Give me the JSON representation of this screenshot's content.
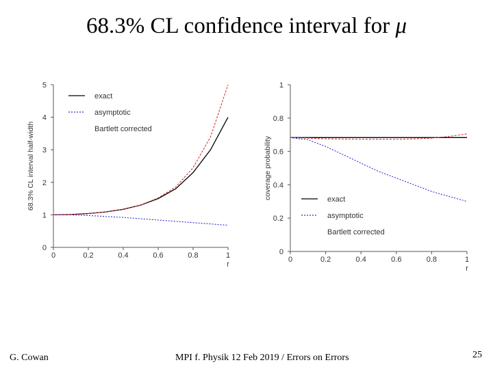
{
  "slide": {
    "title_main": "68.3% CL confidence interval for ",
    "title_symbol": "μ",
    "footer_left": "G. Cowan",
    "footer_center": "MPI f. Physik 12 Feb 2019 / Errors on Errors",
    "page_number": "25"
  },
  "chart_data": [
    {
      "type": "line",
      "xlabel": "r",
      "ylabel": "68.3% CL interval half-width",
      "xlim": [
        0,
        1
      ],
      "ylim": [
        0,
        5
      ],
      "xticks": [
        "0",
        "0.2",
        "0.4",
        "0.6",
        "0.8",
        "1"
      ],
      "yticks": [
        "0",
        "1",
        "2",
        "3",
        "4",
        "5"
      ],
      "legend": [
        "exact",
        "asymptotic",
        "Bartlett corrected"
      ],
      "legend_position": "top-left",
      "grid": false,
      "series": [
        {
          "name": "exact",
          "color": "#000000",
          "x": [
            0,
            0.1,
            0.2,
            0.3,
            0.4,
            0.5,
            0.6,
            0.7,
            0.8,
            0.9,
            1.0
          ],
          "y": [
            1.0,
            1.01,
            1.04,
            1.09,
            1.17,
            1.3,
            1.5,
            1.8,
            2.3,
            3.0,
            4.0
          ]
        },
        {
          "name": "asymptotic",
          "color": "#2a2ad8",
          "x": [
            0,
            0.1,
            0.2,
            0.3,
            0.4,
            0.5,
            0.6,
            0.7,
            0.8,
            0.9,
            1.0
          ],
          "y": [
            1.0,
            1.0,
            0.98,
            0.95,
            0.92,
            0.88,
            0.84,
            0.8,
            0.76,
            0.72,
            0.68
          ]
        },
        {
          "name": "Bartlett corrected",
          "color": "#d83030",
          "x": [
            0,
            0.1,
            0.2,
            0.3,
            0.4,
            0.5,
            0.6,
            0.7,
            0.8,
            0.9,
            1.0
          ],
          "y": [
            1.0,
            1.01,
            1.04,
            1.09,
            1.17,
            1.3,
            1.52,
            1.85,
            2.45,
            3.4,
            5.0
          ]
        }
      ]
    },
    {
      "type": "line",
      "xlabel": "r",
      "ylabel": "coverage probability",
      "xlim": [
        0,
        1
      ],
      "ylim": [
        0,
        1
      ],
      "xticks": [
        "0",
        "0.2",
        "0.4",
        "0.6",
        "0.8",
        "1"
      ],
      "yticks": [
        "0",
        "0.2",
        "0.4",
        "0.6",
        "0.8",
        "1"
      ],
      "legend": [
        "exact",
        "asymptotic",
        "Bartlett corrected"
      ],
      "legend_position": "bottom-left",
      "grid": false,
      "series": [
        {
          "name": "exact",
          "color": "#000000",
          "x": [
            0,
            0.2,
            0.4,
            0.6,
            0.8,
            1.0
          ],
          "y": [
            0.683,
            0.683,
            0.683,
            0.683,
            0.683,
            0.683
          ]
        },
        {
          "name": "asymptotic",
          "color": "#2a2ad8",
          "x": [
            0,
            0.1,
            0.2,
            0.3,
            0.4,
            0.5,
            0.6,
            0.7,
            0.8,
            0.9,
            1.0
          ],
          "y": [
            0.683,
            0.67,
            0.63,
            0.58,
            0.53,
            0.48,
            0.44,
            0.4,
            0.36,
            0.33,
            0.3
          ]
        },
        {
          "name": "Bartlett corrected",
          "color": "#d83030",
          "x": [
            0,
            0.1,
            0.2,
            0.3,
            0.4,
            0.5,
            0.6,
            0.7,
            0.8,
            0.9,
            1.0
          ],
          "y": [
            0.683,
            0.68,
            0.676,
            0.674,
            0.673,
            0.673,
            0.673,
            0.675,
            0.68,
            0.69,
            0.705
          ]
        }
      ]
    }
  ]
}
